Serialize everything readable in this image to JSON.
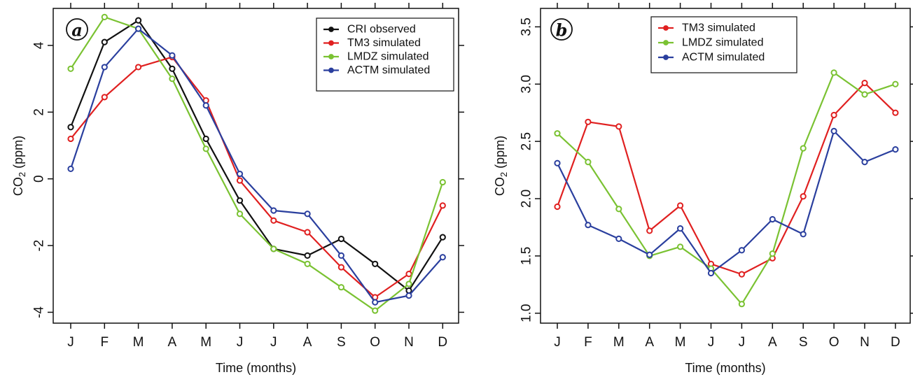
{
  "chart_data": [
    {
      "type": "line",
      "panel_label": "a",
      "categories": [
        "J",
        "F",
        "M",
        "A",
        "M",
        "J",
        "J",
        "A",
        "S",
        "O",
        "N",
        "D"
      ],
      "xlabel": "Time (months)",
      "ylabel_main": "CO",
      "ylabel_sub": "2",
      "ylabel_unit": " (ppm)",
      "ylim": [
        -4.2,
        4.9
      ],
      "yticks": [
        -4,
        -2,
        0,
        2,
        4
      ],
      "yticklabels": [
        "-4",
        "-2",
        "0",
        "2",
        "4"
      ],
      "legend_position": "top-right",
      "series": [
        {
          "name": "CRI observed",
          "color": "#111111",
          "marker": "circle",
          "values": [
            1.55,
            4.1,
            4.75,
            3.3,
            1.2,
            -0.65,
            -2.1,
            -2.3,
            -1.8,
            -2.55,
            -3.35,
            -1.75
          ]
        },
        {
          "name": "TM3 simulated",
          "color": "#e02020",
          "marker": "circle",
          "values": [
            1.2,
            2.45,
            3.35,
            3.65,
            2.35,
            -0.05,
            -1.25,
            -1.6,
            -2.65,
            -3.55,
            -2.85,
            -0.8
          ]
        },
        {
          "name": "LMDZ simulated",
          "color": "#7ac232",
          "marker": "circle",
          "values": [
            3.3,
            4.85,
            4.5,
            3.0,
            0.9,
            -1.05,
            -2.1,
            -2.55,
            -3.25,
            -3.95,
            -3.15,
            -0.1
          ]
        },
        {
          "name": "ACTM simulated",
          "color": "#2a3f9e",
          "marker": "circle",
          "values": [
            0.3,
            3.35,
            4.5,
            3.7,
            2.2,
            0.15,
            -0.95,
            -1.05,
            -2.3,
            -3.7,
            -3.5,
            -2.35
          ]
        }
      ]
    },
    {
      "type": "line",
      "panel_label": "b",
      "categories": [
        "J",
        "F",
        "M",
        "A",
        "M",
        "J",
        "J",
        "A",
        "S",
        "O",
        "N",
        "D"
      ],
      "xlabel": "Time (months)",
      "ylabel_main": "CO",
      "ylabel_sub": "2",
      "ylabel_unit": " (ppm)",
      "ylim": [
        0.95,
        3.6
      ],
      "yticks": [
        1.0,
        1.5,
        2.0,
        2.5,
        3.0,
        3.5
      ],
      "yticklabels": [
        "1.0",
        "1.5",
        "2.0",
        "2.5",
        "3.0",
        "3.5"
      ],
      "legend_position": "top-center",
      "series": [
        {
          "name": "TM3 simulated",
          "color": "#e02020",
          "marker": "circle",
          "values": [
            1.93,
            2.67,
            2.63,
            1.72,
            1.94,
            1.43,
            1.34,
            1.48,
            2.02,
            2.73,
            3.01,
            2.75
          ]
        },
        {
          "name": "LMDZ simulated",
          "color": "#7ac232",
          "marker": "circle",
          "values": [
            2.57,
            2.32,
            1.91,
            1.5,
            1.58,
            1.39,
            1.08,
            1.52,
            2.44,
            3.1,
            2.91,
            3.0
          ]
        },
        {
          "name": "ACTM simulated",
          "color": "#2a3f9e",
          "marker": "circle",
          "values": [
            2.31,
            1.77,
            1.65,
            1.51,
            1.74,
            1.35,
            1.55,
            1.82,
            1.69,
            2.59,
            2.32,
            2.43
          ]
        }
      ]
    }
  ]
}
